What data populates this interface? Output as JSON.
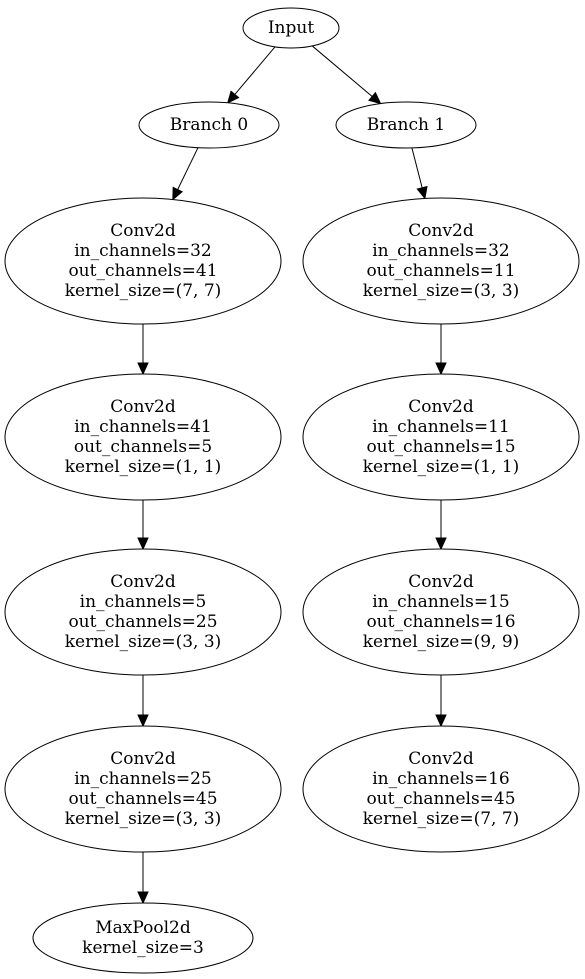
{
  "graph": {
    "nodes": [
      {
        "id": "input",
        "lines": [
          "Input"
        ]
      },
      {
        "id": "branch0",
        "lines": [
          "Branch 0"
        ]
      },
      {
        "id": "branch1",
        "lines": [
          "Branch 1"
        ]
      },
      {
        "id": "b0_conv1",
        "lines": [
          "Conv2d",
          "in_channels=32",
          "out_channels=41",
          "kernel_size=(7, 7)"
        ]
      },
      {
        "id": "b1_conv1",
        "lines": [
          "Conv2d",
          "in_channels=32",
          "out_channels=11",
          "kernel_size=(3, 3)"
        ]
      },
      {
        "id": "b0_conv2",
        "lines": [
          "Conv2d",
          "in_channels=41",
          "out_channels=5",
          "kernel_size=(1, 1)"
        ]
      },
      {
        "id": "b1_conv2",
        "lines": [
          "Conv2d",
          "in_channels=11",
          "out_channels=15",
          "kernel_size=(1, 1)"
        ]
      },
      {
        "id": "b0_conv3",
        "lines": [
          "Conv2d",
          "in_channels=5",
          "out_channels=25",
          "kernel_size=(3, 3)"
        ]
      },
      {
        "id": "b1_conv3",
        "lines": [
          "Conv2d",
          "in_channels=15",
          "out_channels=16",
          "kernel_size=(9, 9)"
        ]
      },
      {
        "id": "b0_conv4",
        "lines": [
          "Conv2d",
          "in_channels=25",
          "out_channels=45",
          "kernel_size=(3, 3)"
        ]
      },
      {
        "id": "b1_conv4",
        "lines": [
          "Conv2d",
          "in_channels=16",
          "out_channels=45",
          "kernel_size=(7, 7)"
        ]
      },
      {
        "id": "b0_pool",
        "lines": [
          "MaxPool2d",
          "kernel_size=3"
        ]
      }
    ],
    "edges": [
      {
        "from": "input",
        "to": "branch0"
      },
      {
        "from": "input",
        "to": "branch1"
      },
      {
        "from": "branch0",
        "to": "b0_conv1"
      },
      {
        "from": "branch1",
        "to": "b1_conv1"
      },
      {
        "from": "b0_conv1",
        "to": "b0_conv2"
      },
      {
        "from": "b1_conv1",
        "to": "b1_conv2"
      },
      {
        "from": "b0_conv2",
        "to": "b0_conv3"
      },
      {
        "from": "b1_conv2",
        "to": "b1_conv3"
      },
      {
        "from": "b0_conv3",
        "to": "b0_conv4"
      },
      {
        "from": "b1_conv3",
        "to": "b1_conv4"
      },
      {
        "from": "b0_conv4",
        "to": "b0_pool"
      }
    ]
  }
}
